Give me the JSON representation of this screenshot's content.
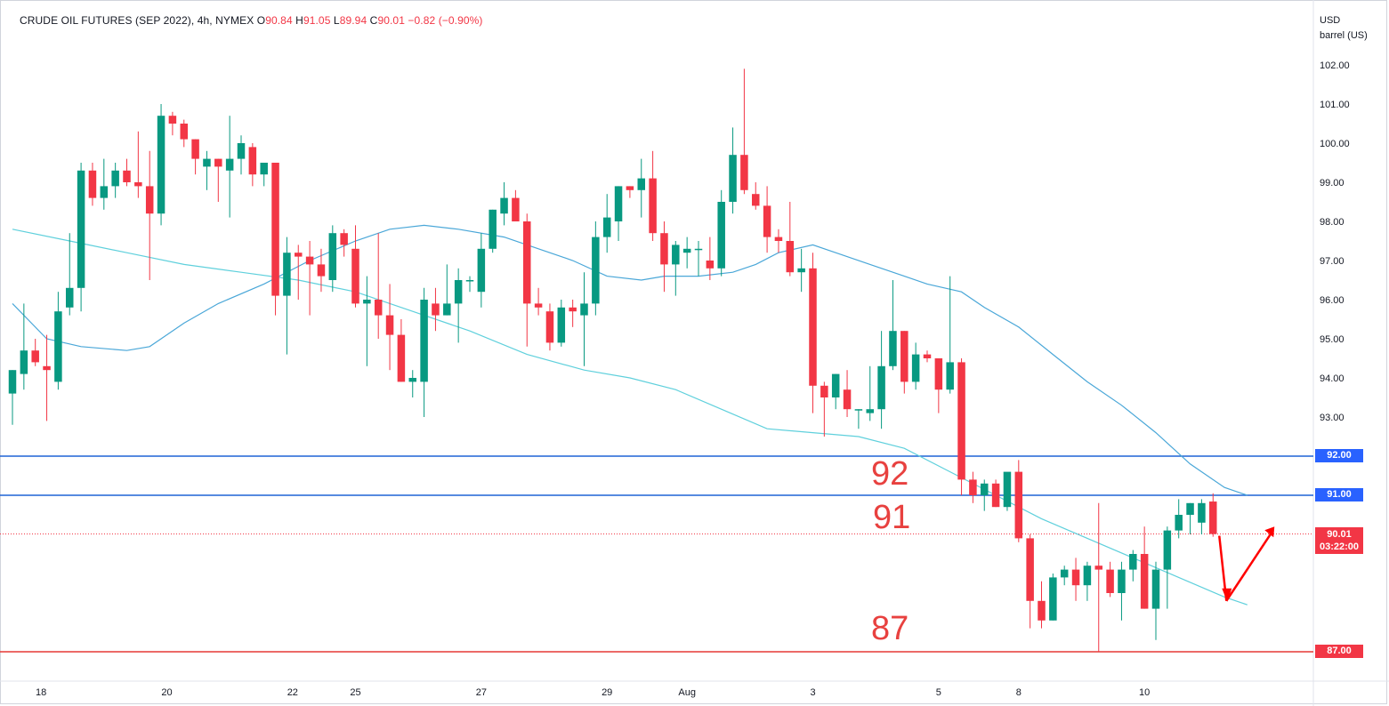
{
  "legend": {
    "symbol": "CRUDE OIL FUTURES (SEP 2022), 4h, NYMEX",
    "o_label": "O",
    "o": "90.84",
    "h_label": "H",
    "h": "91.05",
    "l_label": "L",
    "l": "89.94",
    "c_label": "C",
    "c": "90.01",
    "change": "−0.82 (−0.90%)"
  },
  "unit": {
    "line1": "USD",
    "line2": "barrel (US)"
  },
  "annotations": {
    "a92": "92",
    "a91": "91",
    "a87": "87"
  },
  "price_tags": {
    "t92": "92.00",
    "t91": "91.00",
    "last": "90.01",
    "countdown": "03:22:00",
    "t87": "87.00"
  },
  "colors": {
    "up": "#089981",
    "down": "#f23645",
    "blue_line": "#1e63d6",
    "red_line": "#e53935",
    "ma_fast": "#4aa7d8",
    "ma_slow": "#5fd0dc",
    "arrow": "#ff0000"
  },
  "chart_data": {
    "type": "candlestick",
    "title": "CRUDE OIL FUTURES (SEP 2022), 4h, NYMEX",
    "ylim": [
      86.3,
      102.9
    ],
    "y_ticks": [
      "93.00",
      "94.00",
      "95.00",
      "96.00",
      "97.00",
      "98.00",
      "99.00",
      "100.00",
      "101.00",
      "102.00"
    ],
    "x_ticks": [
      {
        "label": "18",
        "i": 2.5
      },
      {
        "label": "20",
        "i": 13.5
      },
      {
        "label": "22",
        "i": 24.5
      },
      {
        "label": "25",
        "i": 30
      },
      {
        "label": "27",
        "i": 41
      },
      {
        "label": "29",
        "i": 52
      },
      {
        "label": "Aug",
        "i": 59
      },
      {
        "label": "3",
        "i": 70
      },
      {
        "label": "5",
        "i": 81
      },
      {
        "label": "8",
        "i": 88
      },
      {
        "label": "10",
        "i": 99
      }
    ],
    "candles": [
      [
        93.6,
        94.2,
        92.8,
        94.2
      ],
      [
        94.1,
        95.9,
        93.7,
        94.7
      ],
      [
        94.7,
        95.0,
        94.3,
        94.4
      ],
      [
        94.3,
        95.1,
        92.9,
        94.2
      ],
      [
        93.9,
        96.2,
        93.7,
        95.7
      ],
      [
        95.8,
        97.7,
        95.6,
        96.3
      ],
      [
        96.3,
        99.5,
        95.7,
        99.3
      ],
      [
        99.3,
        99.5,
        98.4,
        98.6
      ],
      [
        98.6,
        99.6,
        98.3,
        98.9
      ],
      [
        98.9,
        99.5,
        98.6,
        99.3
      ],
      [
        99.3,
        99.6,
        98.9,
        99.0
      ],
      [
        99.0,
        100.3,
        98.6,
        98.9
      ],
      [
        98.9,
        99.8,
        96.5,
        98.2
      ],
      [
        98.2,
        101.0,
        97.9,
        100.7
      ],
      [
        100.7,
        100.8,
        100.2,
        100.5
      ],
      [
        100.5,
        100.6,
        99.9,
        100.1
      ],
      [
        100.1,
        100.1,
        99.2,
        99.6
      ],
      [
        99.4,
        99.8,
        98.8,
        99.6
      ],
      [
        99.6,
        99.6,
        98.5,
        99.4
      ],
      [
        99.3,
        100.7,
        98.1,
        99.6
      ],
      [
        99.6,
        100.2,
        99.2,
        100.0
      ],
      [
        99.9,
        100.0,
        98.9,
        99.2
      ],
      [
        99.2,
        99.4,
        98.9,
        99.5
      ],
      [
        99.5,
        99.5,
        95.6,
        96.1
      ],
      [
        96.1,
        97.6,
        94.6,
        97.2
      ],
      [
        97.2,
        97.4,
        96.0,
        97.1
      ],
      [
        97.1,
        97.5,
        95.6,
        96.9
      ],
      [
        96.9,
        97.3,
        96.2,
        96.6
      ],
      [
        96.5,
        97.9,
        96.2,
        97.7
      ],
      [
        97.7,
        97.8,
        97.1,
        97.4
      ],
      [
        97.3,
        97.9,
        95.8,
        95.9
      ],
      [
        95.9,
        96.6,
        94.3,
        96.0
      ],
      [
        96.0,
        97.7,
        95.0,
        95.6
      ],
      [
        95.6,
        96.4,
        94.2,
        95.1
      ],
      [
        95.1,
        95.5,
        93.9,
        93.9
      ],
      [
        93.9,
        94.2,
        93.5,
        94.0
      ],
      [
        93.9,
        96.3,
        93.0,
        96.0
      ],
      [
        95.9,
        96.3,
        95.2,
        95.6
      ],
      [
        95.6,
        96.9,
        95.6,
        95.9
      ],
      [
        95.9,
        96.8,
        94.9,
        96.5
      ],
      [
        96.5,
        96.6,
        96.2,
        96.5
      ],
      [
        96.2,
        97.7,
        95.8,
        97.3
      ],
      [
        97.3,
        98.3,
        97.2,
        98.3
      ],
      [
        98.2,
        99.0,
        97.9,
        98.6
      ],
      [
        98.6,
        98.8,
        98.0,
        98.0
      ],
      [
        98.0,
        98.2,
        94.8,
        95.9
      ],
      [
        95.9,
        96.3,
        95.6,
        95.8
      ],
      [
        95.7,
        95.9,
        94.7,
        94.9
      ],
      [
        94.9,
        96.0,
        94.8,
        95.8
      ],
      [
        95.8,
        96.0,
        95.3,
        95.7
      ],
      [
        95.6,
        96.7,
        94.3,
        95.9
      ],
      [
        95.9,
        98.0,
        95.6,
        97.6
      ],
      [
        97.6,
        98.7,
        97.2,
        98.1
      ],
      [
        98.0,
        98.9,
        97.5,
        98.9
      ],
      [
        98.9,
        98.9,
        98.6,
        98.8
      ],
      [
        98.8,
        99.6,
        98.1,
        99.1
      ],
      [
        99.1,
        99.8,
        97.5,
        97.7
      ],
      [
        97.7,
        98.0,
        96.2,
        96.9
      ],
      [
        96.9,
        97.5,
        96.1,
        97.4
      ],
      [
        97.2,
        97.6,
        96.8,
        97.3
      ],
      [
        97.3,
        97.5,
        96.6,
        97.3
      ],
      [
        97.0,
        97.6,
        96.5,
        96.8
      ],
      [
        96.8,
        98.8,
        96.6,
        98.5
      ],
      [
        98.5,
        100.4,
        98.2,
        99.7
      ],
      [
        99.7,
        101.9,
        98.7,
        98.8
      ],
      [
        98.7,
        99.0,
        98.3,
        98.4
      ],
      [
        98.4,
        98.9,
        97.2,
        97.6
      ],
      [
        97.6,
        97.8,
        97.2,
        97.5
      ],
      [
        97.5,
        98.5,
        96.6,
        96.7
      ],
      [
        96.7,
        97.3,
        96.2,
        96.8
      ],
      [
        96.8,
        97.2,
        93.1,
        93.8
      ],
      [
        93.8,
        93.9,
        92.5,
        93.5
      ],
      [
        93.5,
        94.1,
        93.2,
        94.1
      ],
      [
        93.7,
        94.2,
        93.0,
        93.2
      ],
      [
        93.2,
        93.2,
        92.7,
        93.2
      ],
      [
        93.1,
        94.3,
        92.9,
        93.2
      ],
      [
        93.2,
        95.2,
        92.7,
        94.3
      ],
      [
        94.3,
        96.5,
        94.2,
        95.2
      ],
      [
        95.2,
        95.2,
        93.6,
        93.9
      ],
      [
        93.9,
        94.9,
        93.7,
        94.6
      ],
      [
        94.6,
        94.7,
        94.4,
        94.5
      ],
      [
        94.5,
        94.5,
        93.1,
        93.7
      ],
      [
        93.7,
        96.6,
        93.6,
        94.4
      ],
      [
        94.4,
        94.5,
        91.0,
        91.4
      ],
      [
        91.4,
        91.6,
        90.8,
        91.0
      ],
      [
        91.0,
        91.4,
        90.6,
        91.3
      ],
      [
        91.3,
        91.4,
        90.7,
        90.7
      ],
      [
        90.7,
        91.5,
        90.6,
        91.6
      ],
      [
        91.6,
        91.9,
        89.8,
        89.9
      ],
      [
        89.9,
        90.0,
        87.6,
        88.3
      ],
      [
        88.3,
        88.8,
        87.6,
        87.8
      ],
      [
        87.8,
        89.0,
        87.8,
        88.9
      ],
      [
        88.9,
        89.2,
        88.7,
        89.1
      ],
      [
        89.1,
        89.4,
        88.3,
        88.7
      ],
      [
        88.7,
        89.3,
        88.3,
        89.2
      ],
      [
        89.2,
        90.8,
        87.0,
        89.1
      ],
      [
        89.1,
        89.3,
        88.4,
        88.5
      ],
      [
        88.5,
        89.3,
        87.8,
        89.1
      ],
      [
        89.1,
        89.6,
        88.8,
        89.5
      ],
      [
        89.5,
        90.2,
        88.1,
        88.1
      ],
      [
        88.1,
        89.3,
        87.3,
        89.1
      ],
      [
        89.1,
        90.2,
        88.1,
        90.1
      ],
      [
        90.1,
        90.9,
        89.9,
        90.5
      ],
      [
        90.5,
        90.8,
        90.0,
        90.8
      ],
      [
        90.3,
        90.9,
        90.0,
        90.8
      ],
      [
        90.84,
        91.05,
        89.94,
        90.01
      ]
    ],
    "horizontal_levels": [
      {
        "price": 92.0,
        "color": "blue"
      },
      {
        "price": 91.0,
        "color": "blue"
      },
      {
        "price": 87.0,
        "color": "red"
      }
    ],
    "last_price": 90.01,
    "ma_fast": [
      [
        0,
        95.9
      ],
      [
        3,
        95.0
      ],
      [
        6,
        94.8
      ],
      [
        10,
        94.7
      ],
      [
        12,
        94.8
      ],
      [
        15,
        95.4
      ],
      [
        18,
        95.9
      ],
      [
        22,
        96.4
      ],
      [
        26,
        97.0
      ],
      [
        30,
        97.5
      ],
      [
        33,
        97.8
      ],
      [
        36,
        97.9
      ],
      [
        39,
        97.8
      ],
      [
        43,
        97.6
      ],
      [
        46,
        97.3
      ],
      [
        49,
        97.0
      ],
      [
        52,
        96.6
      ],
      [
        55,
        96.5
      ],
      [
        57,
        96.6
      ],
      [
        60,
        96.6
      ],
      [
        63,
        96.7
      ],
      [
        65,
        96.9
      ],
      [
        67,
        97.2
      ],
      [
        70,
        97.4
      ],
      [
        72,
        97.2
      ],
      [
        75,
        96.9
      ],
      [
        78,
        96.6
      ],
      [
        80,
        96.4
      ],
      [
        83,
        96.2
      ],
      [
        85,
        95.8
      ],
      [
        88,
        95.3
      ],
      [
        91,
        94.6
      ],
      [
        94,
        93.9
      ],
      [
        97,
        93.3
      ],
      [
        100,
        92.6
      ],
      [
        103,
        91.8
      ],
      [
        106,
        91.2
      ],
      [
        108,
        91.0
      ]
    ],
    "ma_slow": [
      [
        0,
        97.8
      ],
      [
        5,
        97.5
      ],
      [
        10,
        97.2
      ],
      [
        15,
        96.9
      ],
      [
        20,
        96.7
      ],
      [
        25,
        96.5
      ],
      [
        30,
        96.2
      ],
      [
        35,
        95.7
      ],
      [
        40,
        95.2
      ],
      [
        45,
        94.6
      ],
      [
        50,
        94.2
      ],
      [
        54,
        94.0
      ],
      [
        58,
        93.7
      ],
      [
        62,
        93.2
      ],
      [
        66,
        92.7
      ],
      [
        70,
        92.6
      ],
      [
        74,
        92.5
      ],
      [
        78,
        92.2
      ],
      [
        82,
        91.6
      ],
      [
        86,
        91.0
      ],
      [
        90,
        90.4
      ],
      [
        94,
        89.9
      ],
      [
        98,
        89.4
      ],
      [
        102,
        88.9
      ],
      [
        106,
        88.4
      ],
      [
        108,
        88.2
      ]
    ]
  }
}
